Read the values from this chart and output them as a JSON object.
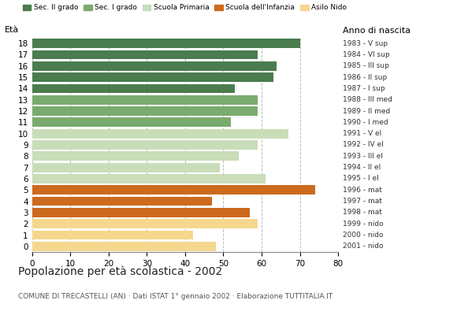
{
  "ages": [
    18,
    17,
    16,
    15,
    14,
    13,
    12,
    11,
    10,
    9,
    8,
    7,
    6,
    5,
    4,
    3,
    2,
    1,
    0
  ],
  "values": [
    70,
    59,
    64,
    63,
    53,
    59,
    59,
    52,
    67,
    59,
    54,
    49,
    61,
    74,
    47,
    57,
    59,
    42,
    48
  ],
  "colors": [
    "#4a7c4e",
    "#4a7c4e",
    "#4a7c4e",
    "#4a7c4e",
    "#4a7c4e",
    "#7aab6e",
    "#7aab6e",
    "#7aab6e",
    "#c8ddb8",
    "#c8ddb8",
    "#c8ddb8",
    "#c8ddb8",
    "#c8ddb8",
    "#cc6a1e",
    "#cc6a1e",
    "#cc6a1e",
    "#f5d78e",
    "#f5d78e",
    "#f5d78e"
  ],
  "right_labels": [
    "1983 - V sup",
    "1984 - VI sup",
    "1985 - III sup",
    "1986 - II sup",
    "1987 - I sup",
    "1988 - III med",
    "1989 - II med",
    "1990 - I med",
    "1991 - V el",
    "1992 - IV el",
    "1993 - III el",
    "1994 - II el",
    "1995 - I el",
    "1996 - mat",
    "1997 - mat",
    "1998 - mat",
    "1999 - nido",
    "2000 - nido",
    "2001 - nido"
  ],
  "legend_labels": [
    "Sec. II grado",
    "Sec. I grado",
    "Scuola Primaria",
    "Scuola dell'Infanzia",
    "Asilo Nido"
  ],
  "legend_colors": [
    "#4a7c4e",
    "#7aab6e",
    "#c8ddb8",
    "#cc6a1e",
    "#f5d78e"
  ],
  "label_left": "Età",
  "label_right": "Anno di nascita",
  "title": "Popolazione per età scolastica - 2002",
  "subtitle": "COMUNE DI TRECASTELLI (AN) · Dati ISTAT 1° gennaio 2002 · Elaborazione TUTTITALIA.IT",
  "xlim": [
    0,
    80
  ],
  "xticks": [
    0,
    10,
    20,
    30,
    40,
    50,
    60,
    70,
    80
  ],
  "background_color": "#ffffff",
  "bar_height": 0.82,
  "grid_color": "#bbbbbb"
}
